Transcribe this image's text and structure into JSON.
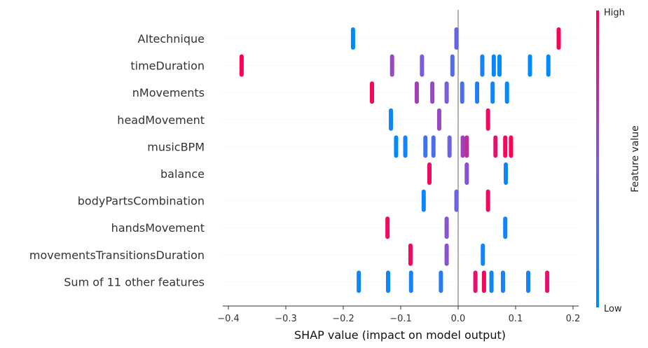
{
  "chart_data": {
    "type": "scatter",
    "title": "",
    "xlabel": "SHAP value (impact on model output)",
    "ylabel": "",
    "xlim": [
      -0.41,
      0.21
    ],
    "xticks": [
      -0.4,
      -0.3,
      -0.2,
      -0.1,
      0.0,
      0.1,
      0.2
    ],
    "xtick_labels": [
      "−0.4",
      "−0.3",
      "−0.2",
      "−0.1",
      "0.0",
      "0.1",
      "0.2"
    ],
    "zero_line": 0,
    "grid": "horizontal dotted",
    "colorbar": {
      "title": "Feature value",
      "high_label": "High",
      "low_label": "Low",
      "low_color": "#008bfb",
      "high_color": "#ff0052"
    },
    "features": [
      {
        "name": "AItechnique",
        "points": [
          [
            -0.183,
            0.0
          ],
          [
            -0.003,
            0.4
          ],
          [
            0.175,
            1.0
          ]
        ]
      },
      {
        "name": "timeDuration",
        "points": [
          [
            -0.377,
            1.0
          ],
          [
            -0.115,
            0.6
          ],
          [
            -0.063,
            0.5
          ],
          [
            -0.01,
            0.35
          ],
          [
            0.042,
            0.1
          ],
          [
            0.062,
            0.05
          ],
          [
            0.072,
            0.0
          ],
          [
            0.125,
            0.0
          ],
          [
            0.157,
            0.0
          ]
        ]
      },
      {
        "name": "nMovements",
        "points": [
          [
            -0.15,
            0.97
          ],
          [
            -0.072,
            0.65
          ],
          [
            -0.045,
            0.6
          ],
          [
            -0.02,
            0.5
          ],
          [
            0.007,
            0.3
          ],
          [
            0.033,
            0.15
          ],
          [
            0.06,
            0.05
          ],
          [
            0.085,
            0.0
          ]
        ]
      },
      {
        "name": "headMovement",
        "points": [
          [
            -0.117,
            0.05
          ],
          [
            -0.033,
            0.6
          ],
          [
            0.052,
            0.95
          ]
        ]
      },
      {
        "name": "musicBPM",
        "points": [
          [
            -0.108,
            0.0
          ],
          [
            -0.092,
            0.1
          ],
          [
            -0.057,
            0.25
          ],
          [
            -0.043,
            0.3
          ],
          [
            -0.015,
            0.45
          ],
          [
            0.008,
            0.65
          ],
          [
            0.015,
            0.75
          ],
          [
            0.065,
            0.9
          ],
          [
            0.082,
            0.95
          ],
          [
            0.092,
            1.0
          ]
        ]
      },
      {
        "name": "balance",
        "points": [
          [
            -0.05,
            0.95
          ],
          [
            0.015,
            0.55
          ],
          [
            0.083,
            0.05
          ]
        ]
      },
      {
        "name": "bodyPartsCombination",
        "points": [
          [
            -0.06,
            0.05
          ],
          [
            -0.003,
            0.45
          ],
          [
            0.052,
            0.95
          ]
        ]
      },
      {
        "name": "handsMovement",
        "points": [
          [
            -0.123,
            0.95
          ],
          [
            -0.02,
            0.55
          ],
          [
            0.082,
            0.05
          ]
        ]
      },
      {
        "name": "movementsTransitionsDuration",
        "points": [
          [
            -0.083,
            0.95
          ],
          [
            -0.02,
            0.55
          ],
          [
            0.043,
            0.05
          ]
        ]
      },
      {
        "name": "Sum of 11 other features",
        "points": [
          [
            -0.173,
            0.05
          ],
          [
            -0.122,
            0.05
          ],
          [
            -0.082,
            0.1
          ],
          [
            -0.03,
            0.15
          ],
          [
            0.03,
            0.9
          ],
          [
            0.045,
            0.95
          ],
          [
            0.058,
            0.05
          ],
          [
            0.078,
            0.1
          ],
          [
            0.122,
            0.1
          ],
          [
            0.155,
            0.9
          ]
        ]
      }
    ]
  }
}
